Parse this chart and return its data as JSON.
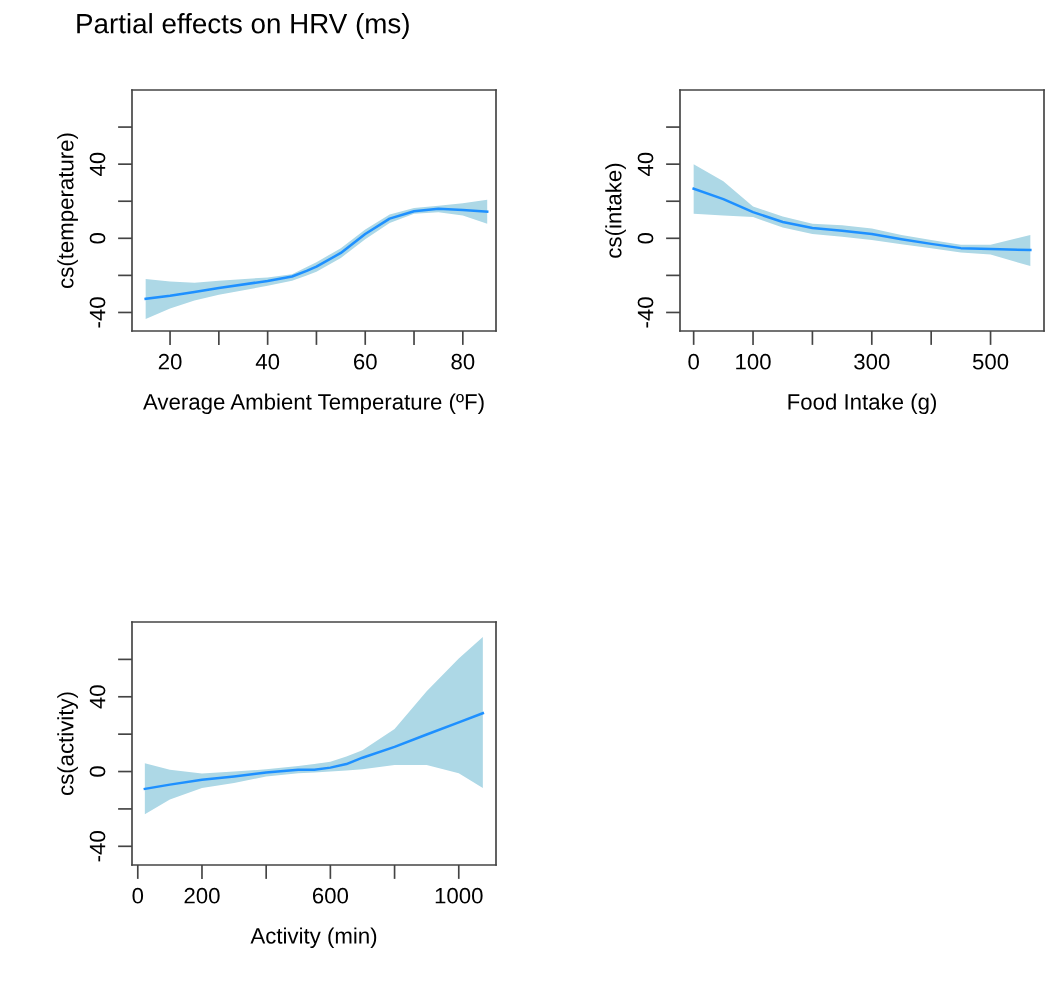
{
  "chart_data": [
    {
      "type": "line",
      "title": "Partial effects on HRV (ms)",
      "xlabel": "Average Ambient Temperature (ºF)",
      "ylabel": "cs(temperature)",
      "xlim": [
        12.2,
        86.8
      ],
      "ylim": [
        -50,
        80
      ],
      "xticks": [
        20,
        {
          "value": 30,
          "label": null
        },
        40,
        {
          "value": 50,
          "label": null
        },
        60,
        {
          "value": 70,
          "label": null
        },
        80
      ],
      "yticks": [
        -40,
        {
          "value": -20,
          "label": null
        },
        0,
        {
          "value": 20,
          "label": null
        },
        40,
        {
          "value": 60,
          "label": null
        }
      ],
      "grid": false,
      "marker": "none",
      "line_style": "solid",
      "series": [
        {
          "color": "#1e90ff",
          "x": [
            15,
            20,
            25,
            30,
            40,
            45,
            48,
            50,
            55,
            60,
            65,
            70,
            75,
            80,
            85
          ],
          "values": [
            -32.6,
            -31,
            -29,
            -26.8,
            -23,
            -20.6,
            -17.6,
            -15.3,
            -7.9,
            2.3,
            10.6,
            14.6,
            16,
            15.3,
            14.4
          ],
          "lower": [
            -43.5,
            -37.9,
            -33.5,
            -30.5,
            -25.6,
            -22.9,
            -20,
            -18.1,
            -10.6,
            -0.5,
            8.3,
            13.2,
            14.1,
            12.3,
            7.9
          ],
          "upper": [
            -22,
            -23.3,
            -24,
            -22.9,
            -21.1,
            -19.4,
            -15.5,
            -12.9,
            -5.3,
            4.8,
            12.9,
            16.4,
            17.6,
            18.9,
            20.8
          ]
        }
      ]
    },
    {
      "type": "line",
      "xlabel": "Food Intake (g)",
      "ylabel": "cs(intake)",
      "xlim": [
        -23,
        590
      ],
      "ylim": [
        -50,
        80
      ],
      "xticks": [
        0,
        100,
        {
          "value": 200,
          "label": null
        },
        300,
        {
          "value": 400,
          "label": null
        },
        500
      ],
      "yticks": [
        -40,
        {
          "value": -20,
          "label": null
        },
        0,
        {
          "value": 20,
          "label": null
        },
        40,
        {
          "value": 60,
          "label": null
        }
      ],
      "grid": false,
      "marker": "none",
      "line_style": "solid",
      "series": [
        {
          "color": "#1e90ff",
          "x": [
            0,
            50,
            100,
            150,
            200,
            250,
            300,
            350,
            400,
            450,
            500,
            567
          ],
          "values": [
            26.8,
            21.1,
            14.1,
            8.8,
            5.6,
            4.1,
            2.3,
            -0.5,
            -3,
            -5.3,
            -5.8,
            -6.3
          ],
          "lower": [
            13.2,
            12.3,
            11.5,
            5.8,
            2.3,
            0.9,
            -0.9,
            -3.2,
            -5.3,
            -7.6,
            -8.8,
            -15
          ],
          "upper": [
            40,
            30.8,
            17.1,
            11.8,
            7.9,
            7,
            5.3,
            1.8,
            -0.9,
            -3.5,
            -3.5,
            1.8
          ]
        }
      ]
    },
    {
      "type": "line",
      "xlabel": "Activity (min)",
      "ylabel": "cs(activity)",
      "xlim": [
        -18,
        1116
      ],
      "ylim": [
        -50,
        80
      ],
      "xticks": [
        0,
        200,
        {
          "value": 400,
          "label": null
        },
        600,
        {
          "value": 800,
          "label": null
        },
        1000
      ],
      "yticks": [
        -40,
        {
          "value": -20,
          "label": null
        },
        0,
        {
          "value": 20,
          "label": null
        },
        40,
        {
          "value": 60,
          "label": null
        }
      ],
      "grid": false,
      "marker": "none",
      "line_style": "solid",
      "series": [
        {
          "color": "#1e90ff",
          "x": [
            22,
            100,
            200,
            300,
            400,
            500,
            550,
            600,
            650,
            700,
            800,
            900,
            1000,
            1075
          ],
          "values": [
            -9.3,
            -7,
            -4.4,
            -2.6,
            -0.5,
            0.9,
            0.9,
            2.1,
            4,
            7.4,
            13.2,
            19.8,
            26.3,
            31.2
          ],
          "lower": [
            -22.8,
            -14.9,
            -8.8,
            -6.1,
            -2.6,
            -0.9,
            -0.5,
            0,
            0.6,
            1.2,
            3.5,
            3.5,
            -0.9,
            -8.8
          ],
          "upper": [
            4.4,
            0.9,
            -1,
            0,
            1.2,
            3,
            4,
            5.3,
            8,
            11.4,
            22.8,
            43,
            60.5,
            72
          ]
        }
      ]
    }
  ]
}
